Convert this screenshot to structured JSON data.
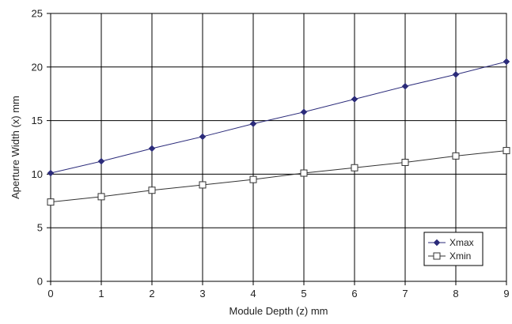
{
  "chart_data": {
    "type": "line",
    "title": "",
    "xlabel": "Module Depth (z) mm",
    "ylabel": "Aperture Width (x) mm",
    "x": [
      0,
      1,
      2,
      3,
      4,
      5,
      6,
      7,
      8,
      9
    ],
    "xlim": [
      0,
      9
    ],
    "ylim": [
      0,
      25
    ],
    "xticks": [
      "0",
      "1",
      "2",
      "3",
      "4",
      "5",
      "6",
      "7",
      "8",
      "9"
    ],
    "yticks": [
      "0",
      "5",
      "10",
      "15",
      "20",
      "25"
    ],
    "grid": true,
    "legend_position": "bottom-right",
    "series": [
      {
        "name": "Xmax",
        "marker": "filled-diamond",
        "color": "#2b2b7a",
        "values": [
          10.1,
          11.2,
          12.4,
          13.5,
          14.7,
          15.8,
          17.0,
          18.2,
          19.3,
          20.5
        ]
      },
      {
        "name": "Xmin",
        "marker": "open-square",
        "color": "#333333",
        "values": [
          7.4,
          7.9,
          8.5,
          9.0,
          9.5,
          10.1,
          10.6,
          11.1,
          11.7,
          12.2
        ]
      }
    ]
  }
}
